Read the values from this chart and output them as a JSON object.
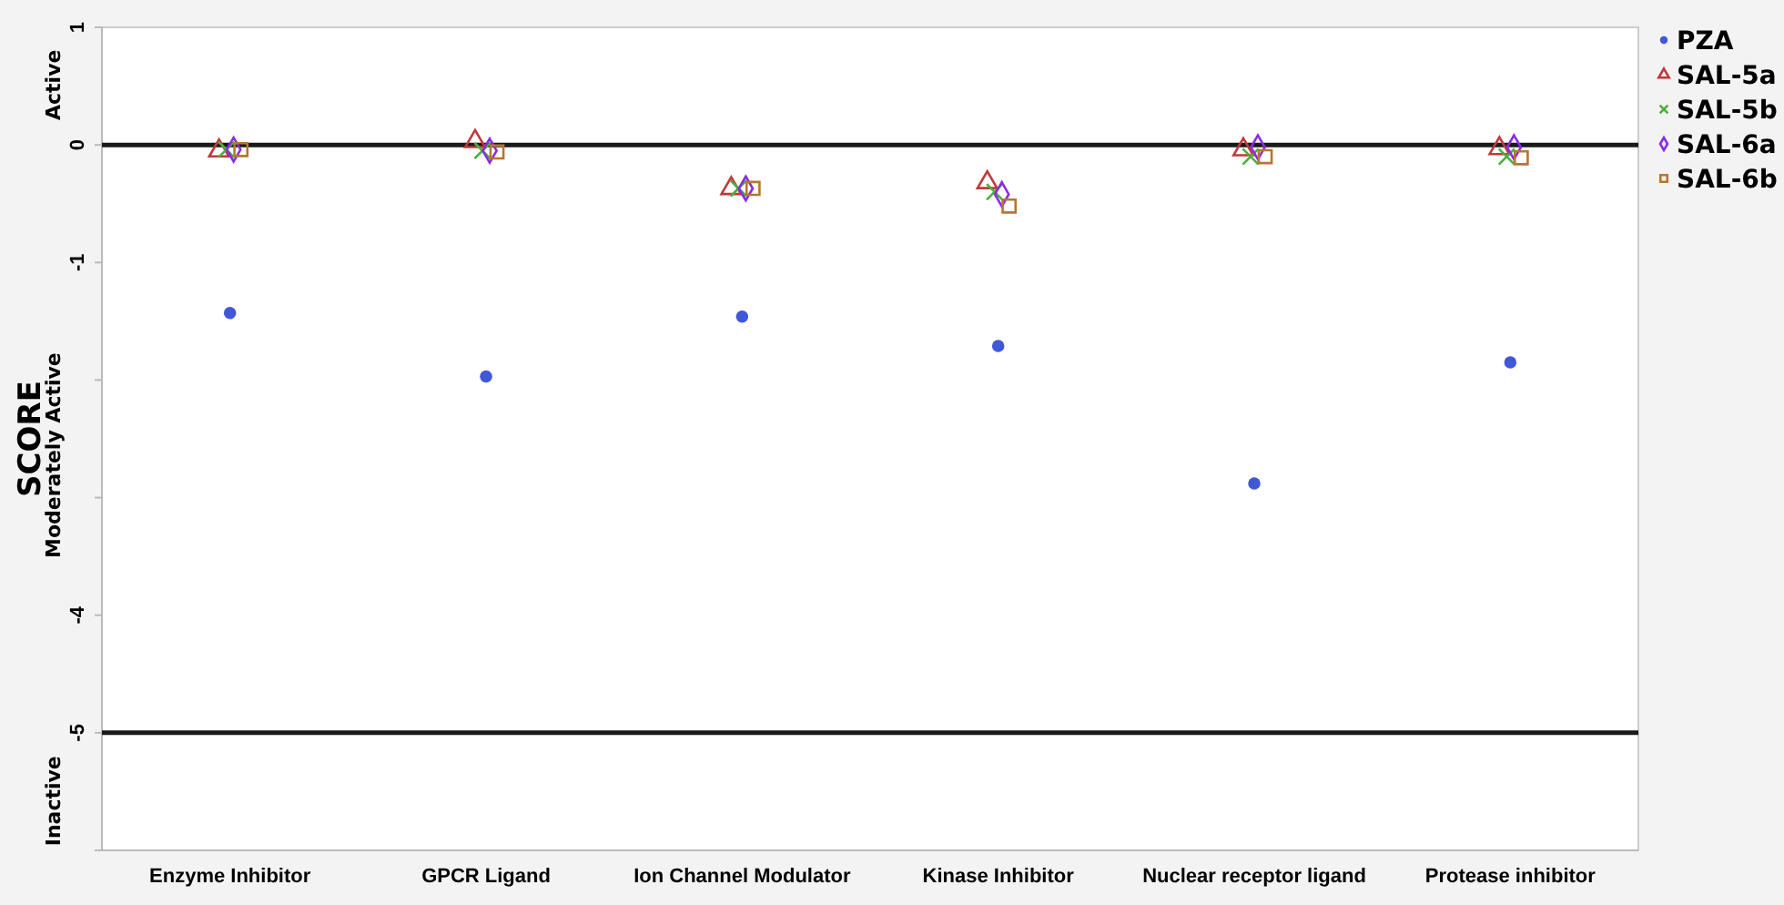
{
  "chart_data": {
    "type": "scatter",
    "ylabel": "SCORE",
    "categories": [
      "Enzyme Inhibitor",
      "GPCR Ligand",
      "Ion Channel Modulator",
      "Kinase Inhibitor",
      "Nuclear receptor ligand",
      "Protease inhibitor"
    ],
    "series": [
      {
        "name": "PZA",
        "color": "#4057d8",
        "marker": "circle",
        "values": [
          -1.43,
          -1.97,
          -1.46,
          -1.71,
          -2.88,
          -1.85
        ]
      },
      {
        "name": "SAL-5a",
        "color": "#c0393b",
        "marker": "triangle",
        "values": [
          -0.05,
          0.03,
          -0.37,
          -0.32,
          -0.04,
          -0.03
        ]
      },
      {
        "name": "SAL-5b",
        "color": "#4caf3a",
        "marker": "cross",
        "values": [
          -0.04,
          -0.05,
          -0.37,
          -0.4,
          -0.1,
          -0.1
        ]
      },
      {
        "name": "SAL-6a",
        "color": "#8a2be2",
        "marker": "diamond",
        "values": [
          -0.04,
          -0.05,
          -0.37,
          -0.42,
          -0.02,
          -0.02
        ]
      },
      {
        "name": "SAL-6b",
        "color": "#b8762e",
        "marker": "square",
        "values": [
          -0.04,
          -0.06,
          -0.37,
          -0.52,
          -0.1,
          -0.11
        ]
      }
    ],
    "ylim": [
      -6,
      1
    ],
    "yticks": [
      1,
      0,
      -1,
      {
        "value": -2,
        "label": null
      },
      {
        "value": -3,
        "label": null
      },
      -4,
      -5
    ],
    "ref_lines": [
      {
        "axis": "y",
        "value": 0,
        "color": "#1a1a1a"
      },
      {
        "axis": "y",
        "value": -5,
        "color": "#1a1a1a"
      }
    ],
    "annotations": [
      "Active",
      "Moderately Active",
      "Inactive"
    ],
    "grid": false,
    "legend": "right"
  }
}
